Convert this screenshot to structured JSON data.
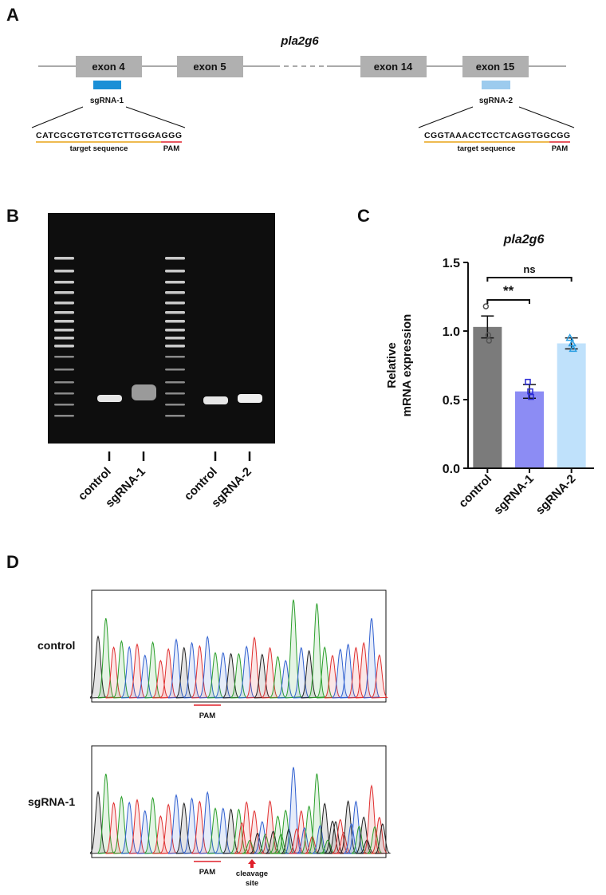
{
  "panels": {
    "a": "A",
    "b": "B",
    "c": "C",
    "d": "D"
  },
  "gene_diagram": {
    "gene": "pla2g6",
    "exons": [
      "exon 4",
      "exon 5",
      "exon 14",
      "exon 15"
    ],
    "guides": [
      {
        "name": "sgRNA-1",
        "sequence": "CATCGCGTGTCGTCTTGGGAGGG",
        "target_label": "target sequence",
        "pam_label": "PAM"
      },
      {
        "name": "sgRNA-2",
        "sequence": "CGGTAAACCTCCTCAGGTGGCGG",
        "target_label": "target sequence",
        "pam_label": "PAM"
      }
    ]
  },
  "gel": {
    "lanes": [
      "control",
      "sgRNA-1",
      "control",
      "sgRNA-2"
    ]
  },
  "chart_data": {
    "type": "bar",
    "title": "pla2g6",
    "ylabel": [
      "Relative",
      "mRNA expression"
    ],
    "categories": [
      "control",
      "sgRNA-1",
      "sgRNA-2"
    ],
    "values": [
      1.03,
      0.56,
      0.91
    ],
    "errors": [
      0.08,
      0.05,
      0.04
    ],
    "points": [
      [
        1.18,
        0.97,
        0.93
      ],
      [
        0.63,
        0.56,
        0.52
      ],
      [
        0.95,
        0.91,
        0.87
      ]
    ],
    "colors": [
      "#7b7b7b",
      "#8c8cf4",
      "#bfe1fb"
    ],
    "point_colors": [
      "#555555",
      "#2b2bd6",
      "#2a9fe3"
    ],
    "markers": [
      "circle",
      "square",
      "triangle"
    ],
    "ylim": [
      0,
      1.5
    ],
    "yticks": [
      {
        "value": 0,
        "label": "0.0"
      },
      0.5,
      {
        "value": 1,
        "label": "1.0"
      },
      1.5
    ],
    "annotations": [
      {
        "text": "**",
        "between": [
          "control",
          "sgRNA-1"
        ]
      },
      {
        "text": "ns",
        "between": [
          "control",
          "sgRNA-2"
        ]
      }
    ]
  },
  "chromatograms": {
    "samples": [
      "control",
      "sgRNA-1"
    ],
    "pam_labels": [
      "PAM",
      "PAM"
    ],
    "cleavage_label": [
      "cleavage",
      "site"
    ]
  }
}
